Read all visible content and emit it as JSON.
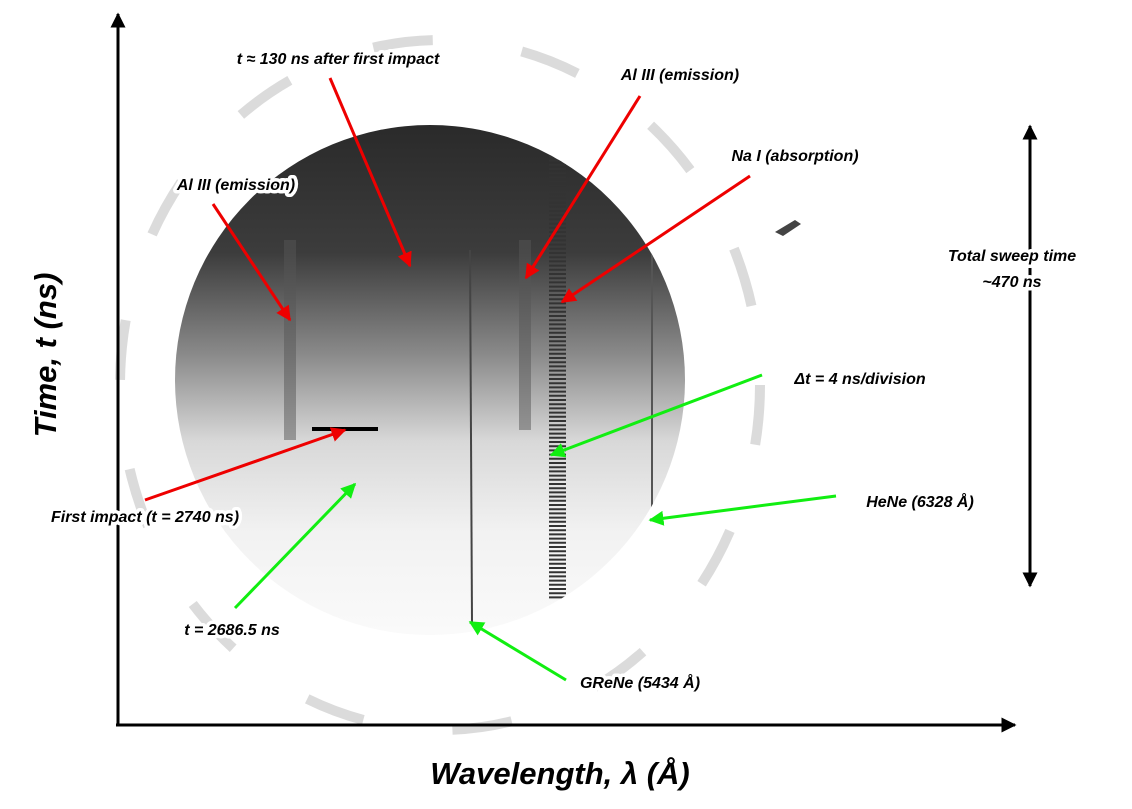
{
  "axes": {
    "y_label": "Time, t (ns)",
    "x_label": "Wavelength, λ (Å)"
  },
  "annotations": {
    "time_after_impact": "t ≈ 130 ns after first impact",
    "al_iii_right": "Al III (emission)",
    "na_i": "Na I (absorption)",
    "al_iii_left": "Al III (emission)",
    "sweep_time": [
      "Total sweep time",
      "~470 ns"
    ],
    "delta_t": "Δt = 4 ns/division",
    "hene": "HeNe (6328 Å)",
    "first_impact": "First impact (t = 2740 ns)",
    "t_start": "t = 2686.5 ns",
    "grene": "GReNe (5434 Å)"
  }
}
